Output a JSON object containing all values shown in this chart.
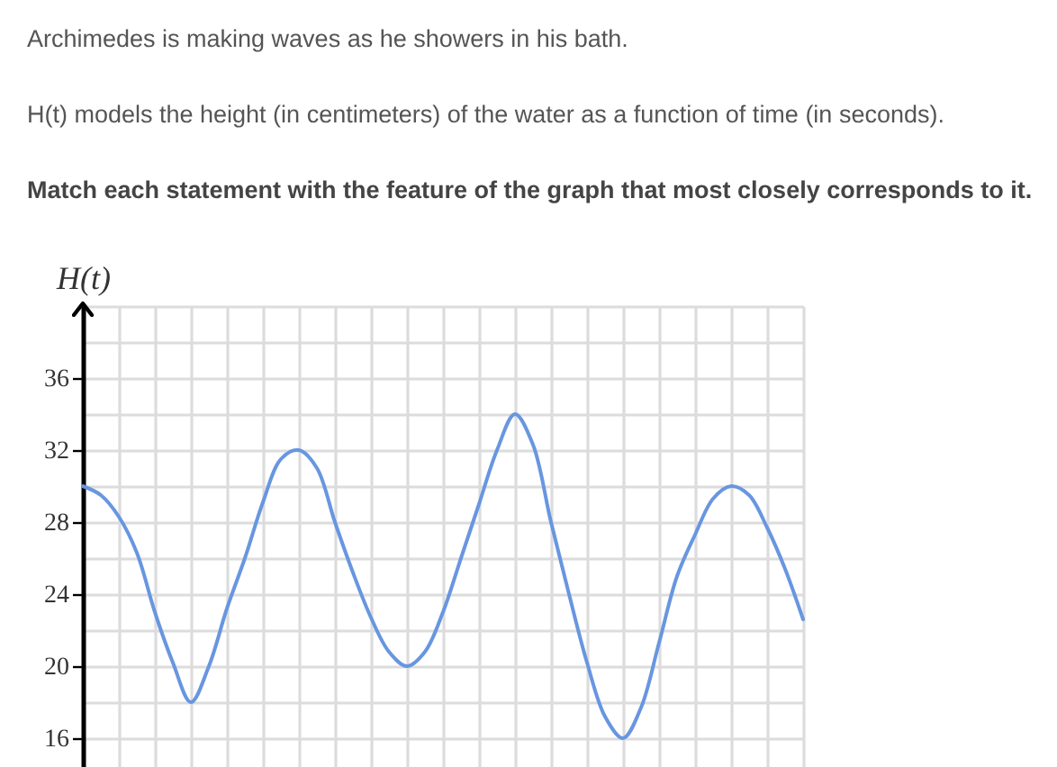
{
  "chart_data": {
    "type": "line",
    "title": "Archimedes is making waves as he showers in his bath.",
    "subtitle": "H(t) models the height (in centimeters) of the water as a function of time (in seconds).",
    "annotations": [
      "Match each statement with the feature of the graph that most closely corresponds to it."
    ],
    "ylabel": "H(t)",
    "categories": [
      null,
      null,
      null,
      null,
      null,
      null,
      null,
      null,
      null,
      null,
      null,
      null,
      null,
      null,
      null,
      null,
      null,
      null,
      null,
      null,
      null,
      null,
      null,
      null,
      null,
      null,
      null,
      null,
      null,
      null,
      null,
      null,
      null,
      null,
      null,
      null,
      null,
      null,
      null,
      null,
      null
    ],
    "series": [
      {
        "color": "#6896e0",
        "values": [
          30,
          29.5,
          28.3,
          26.3,
          23,
          20.2,
          18,
          20,
          23.2,
          26,
          29.1,
          31.5,
          32,
          31,
          28,
          25.2,
          22.7,
          20.8,
          20,
          20.8,
          23,
          26,
          29,
          32,
          34,
          32.3,
          28,
          24,
          20.2,
          17.2,
          16,
          17.7,
          21.3,
          25,
          27.3,
          29.3,
          30,
          29.5,
          27.7,
          25.4,
          22.6
        ]
      }
    ],
    "ylim": [
      14.4,
      40
    ],
    "yticks": [
      16,
      {
        "value": 18,
        "label": null
      },
      20,
      {
        "value": 22,
        "label": null
      },
      24,
      {
        "value": 26,
        "label": null
      },
      28,
      {
        "value": 30,
        "label": null
      },
      32,
      {
        "value": 34,
        "label": null
      },
      36,
      {
        "value": 38,
        "label": null
      },
      {
        "value": 40,
        "label": null
      }
    ],
    "grid": true,
    "tick_labels": "y",
    "line_style": "solid"
  }
}
